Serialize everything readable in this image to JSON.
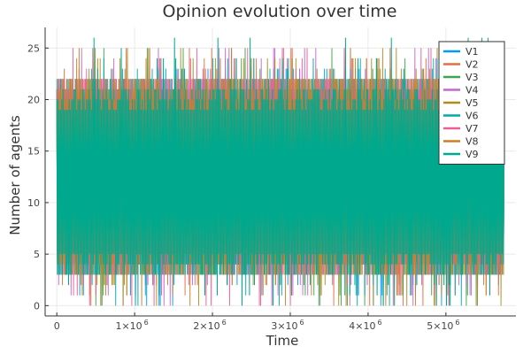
{
  "chart_data": {
    "type": "line",
    "title": "Opinion evolution over time",
    "xlabel": "Time",
    "ylabel": "Number of agents",
    "xlim": [
      -150000,
      5900000
    ],
    "ylim": [
      -1,
      27
    ],
    "x_ticks": [
      {
        "value": 0,
        "label": "0",
        "exp": ""
      },
      {
        "value": 1000000,
        "label": "1×10",
        "exp": "6"
      },
      {
        "value": 2000000,
        "label": "2×10",
        "exp": "6"
      },
      {
        "value": 3000000,
        "label": "3×10",
        "exp": "6"
      },
      {
        "value": 4000000,
        "label": "4×10",
        "exp": "6"
      },
      {
        "value": 5000000,
        "label": "5×10",
        "exp": "6"
      }
    ],
    "y_ticks": [
      0,
      5,
      10,
      15,
      20,
      25
    ],
    "grid": true,
    "legend_position": "top-right",
    "x_range": [
      0,
      5750000
    ],
    "series": [
      {
        "name": "V1",
        "color": "#009AFA",
        "min": 0,
        "max": 23,
        "typical_low": 3,
        "typical_high": 22
      },
      {
        "name": "V2",
        "color": "#E36F47",
        "min": 0,
        "max": 25,
        "typical_low": 3,
        "typical_high": 22
      },
      {
        "name": "V3",
        "color": "#3EA44E",
        "min": 0,
        "max": 25,
        "typical_low": 3,
        "typical_high": 22
      },
      {
        "name": "V4",
        "color": "#C468D0",
        "min": 0,
        "max": 25,
        "typical_low": 3,
        "typical_high": 22
      },
      {
        "name": "V5",
        "color": "#AC8E18",
        "min": 0,
        "max": 25,
        "typical_low": 3,
        "typical_high": 22
      },
      {
        "name": "V6",
        "color": "#00AAAE",
        "min": 0,
        "max": 24,
        "typical_low": 3,
        "typical_high": 22
      },
      {
        "name": "V7",
        "color": "#ED5E93",
        "min": 0,
        "max": 25,
        "typical_low": 3,
        "typical_high": 22
      },
      {
        "name": "V8",
        "color": "#C68225",
        "min": 0,
        "max": 25,
        "typical_low": 3,
        "typical_high": 22
      },
      {
        "name": "V9",
        "color": "#00A98D",
        "min": 0,
        "max": 26,
        "typical_low": 3,
        "typical_high": 21
      }
    ]
  }
}
